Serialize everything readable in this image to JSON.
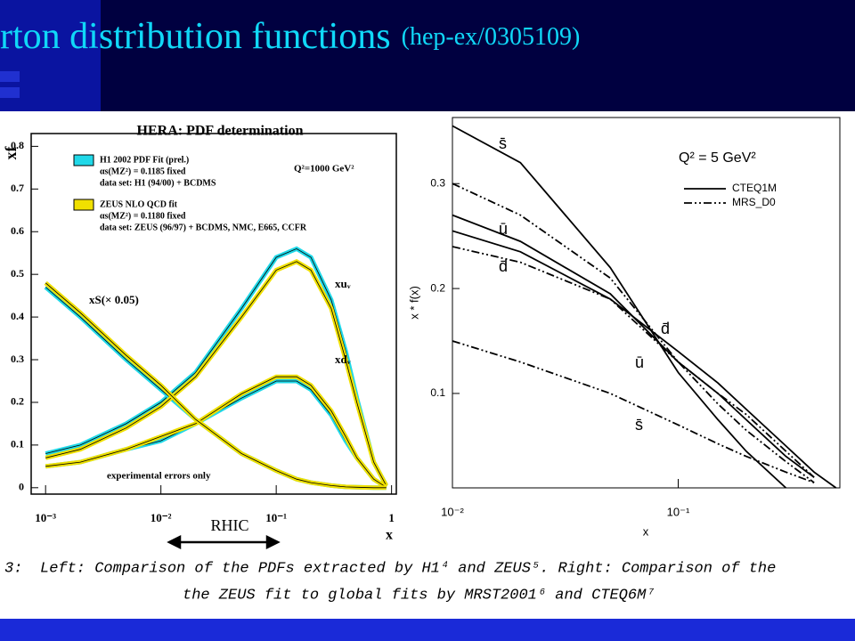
{
  "title": "rton distribution functions",
  "title_ref": "(hep-ex/0305109)",
  "caption": {
    "number": "3:",
    "lines": [
      "Left: Comparison of the PDFs extracted by H1⁴ and ZEUS⁵. Right: Comparison of the",
      "the ZEUS fit to global fits by MRST2001⁶ and CTEQ6M⁷"
    ]
  },
  "annotation": "RHIC",
  "chart_data": [
    {
      "type": "line",
      "title": "HERA: PDF determination",
      "xlabel": "x",
      "ylabel": "xf",
      "xlog": true,
      "xlim": [
        0.00075,
        1.1
      ],
      "ylim": [
        -0.015,
        0.83
      ],
      "xticks": [
        {
          "value": 0.001,
          "label": "10⁻³"
        },
        {
          "value": 0.01,
          "label": "10⁻²"
        },
        {
          "value": 0.1,
          "label": "10⁻¹"
        },
        1
      ],
      "yticks": [
        0,
        0.1,
        0.2,
        0.3,
        0.4,
        0.5,
        0.6,
        0.7,
        0.8
      ],
      "annotations": [
        "Q²=1000 GeV²",
        "experimental errors only"
      ],
      "curve_labels": {
        "uv": "xuᵥ",
        "dv": "xdᵥ",
        "S": "xS(× 0.05)"
      },
      "x": [
        0.001,
        0.002,
        0.005,
        0.01,
        0.02,
        0.05,
        0.1,
        0.15,
        0.2,
        0.3,
        0.4,
        0.5,
        0.7,
        0.9
      ],
      "series": [
        {
          "name": "H1 2002 PDF Fit (prel.)",
          "details": [
            "αs(MZ²) = 0.1185 fixed",
            "data set: H1 (94/00) + BCDMS"
          ],
          "color": "#20d8e8",
          "uv": [
            0.08,
            0.1,
            0.15,
            0.2,
            0.27,
            0.42,
            0.54,
            0.56,
            0.54,
            0.44,
            0.32,
            0.21,
            0.06,
            0.005
          ],
          "dv": [
            0.05,
            0.06,
            0.09,
            0.11,
            0.15,
            0.21,
            0.25,
            0.25,
            0.23,
            0.17,
            0.11,
            0.07,
            0.02,
            0.001
          ],
          "S": [
            0.47,
            0.4,
            0.3,
            0.23,
            0.16,
            0.08,
            0.04,
            0.02,
            0.012,
            0.005,
            0.002,
            0.001,
            0,
            0
          ]
        },
        {
          "name": "ZEUS NLO QCD fit",
          "details": [
            "αs(MZ²) = 0.1180 fixed",
            "data set: ZEUS (96/97) + BCDMS, NMC, E665, CCFR"
          ],
          "color": "#f0e000",
          "uv": [
            0.07,
            0.09,
            0.14,
            0.19,
            0.26,
            0.4,
            0.51,
            0.53,
            0.51,
            0.42,
            0.3,
            0.2,
            0.06,
            0.005
          ],
          "dv": [
            0.05,
            0.06,
            0.09,
            0.12,
            0.15,
            0.22,
            0.26,
            0.26,
            0.24,
            0.18,
            0.12,
            0.07,
            0.02,
            0.001
          ],
          "S": [
            0.48,
            0.41,
            0.31,
            0.24,
            0.16,
            0.08,
            0.04,
            0.02,
            0.012,
            0.005,
            0.002,
            0.001,
            0,
            0
          ]
        }
      ]
    },
    {
      "type": "line",
      "xlabel": "x",
      "ylabel": "x * f(x)",
      "xlog": true,
      "xlim": [
        0.01,
        0.52
      ],
      "ylim": [
        0.01,
        0.363
      ],
      "xticks": [
        {
          "value": 0.01,
          "label": "10⁻²"
        },
        {
          "value": 0.1,
          "label": "10⁻¹"
        }
      ],
      "yticks": [
        0.1,
        0.2,
        0.3
      ],
      "annotations": [
        "Q² = 5 GeV²"
      ],
      "curve_labels": [
        "s̄",
        "ū",
        "d̄",
        "d̄",
        "ū",
        "s̄"
      ],
      "x": [
        0.01,
        0.02,
        0.05,
        0.1,
        0.15,
        0.2,
        0.3,
        0.4,
        0.5
      ],
      "series": [
        {
          "name": "CTEQ1M",
          "color": "#000000",
          "dashed": false,
          "sbar": [
            0.355,
            0.32,
            0.22,
            0.12,
            0.075,
            0.045,
            0.01,
            null,
            null
          ],
          "ubar": [
            0.27,
            0.245,
            0.195,
            0.13,
            0.1,
            0.075,
            0.04,
            0.02,
            null
          ],
          "dbar": [
            0.255,
            0.235,
            0.19,
            0.14,
            0.11,
            0.085,
            0.05,
            0.025,
            0.01
          ]
        },
        {
          "name": "MRS_D0",
          "color": "#000000",
          "dashed": true,
          "sbar": [
            0.15,
            0.13,
            0.1,
            0.07,
            0.052,
            0.04,
            0.025,
            0.015,
            null
          ],
          "ubar": [
            0.3,
            0.27,
            0.21,
            0.13,
            0.09,
            0.065,
            0.035,
            0.015,
            null
          ],
          "dbar": [
            0.24,
            0.225,
            0.19,
            0.13,
            0.1,
            0.08,
            0.045,
            0.02,
            null
          ]
        }
      ]
    }
  ]
}
